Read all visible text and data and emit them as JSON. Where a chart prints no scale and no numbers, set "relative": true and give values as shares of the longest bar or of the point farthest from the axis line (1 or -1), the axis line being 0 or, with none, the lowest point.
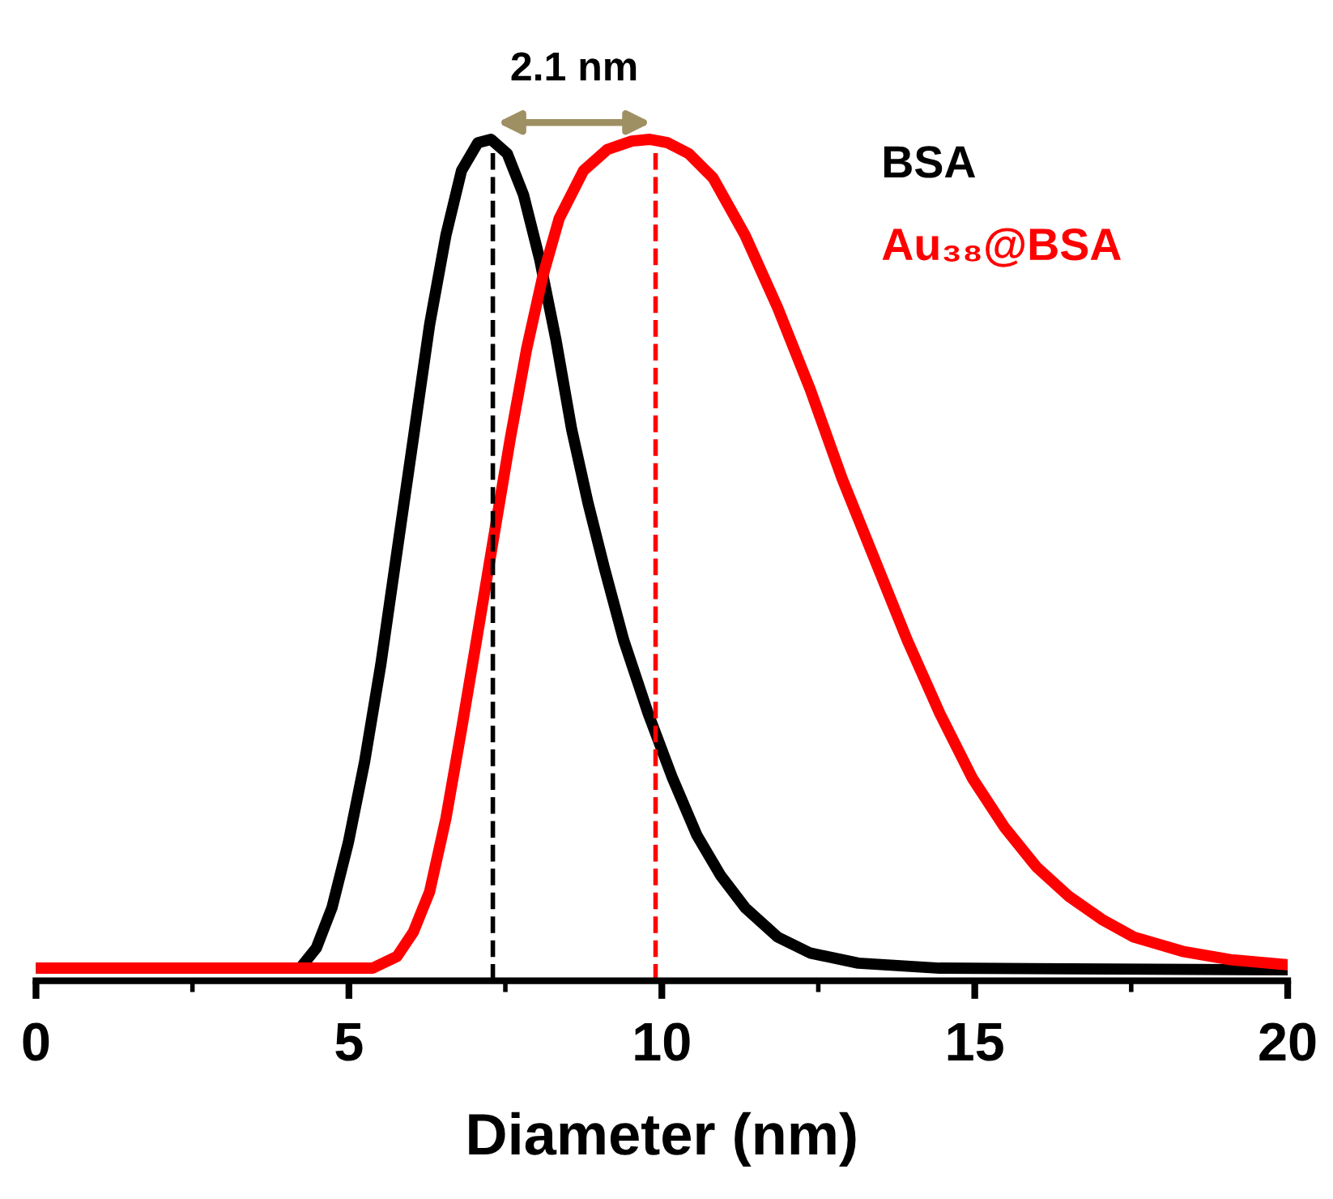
{
  "chart_data": {
    "type": "line",
    "relative": true,
    "xlabel": "Diameter (nm)",
    "xlim": [
      0,
      20
    ],
    "xticks": [
      0,
      {
        "value": 2.5,
        "label": null
      },
      5,
      {
        "value": 7.5,
        "label": null
      },
      10,
      {
        "value": 12.5,
        "label": null
      },
      15,
      {
        "value": 17.5,
        "label": null
      },
      20
    ],
    "legend": "top right",
    "grid": false,
    "marker": "none",
    "line_style": "solid",
    "series": [
      {
        "name": "BSA",
        "color": "#000000",
        "x": [
          0,
          4.22,
          4.48,
          4.73,
          4.99,
          5.25,
          5.51,
          5.77,
          6.03,
          6.29,
          6.55,
          6.8,
          7.06,
          7.27,
          7.53,
          7.79,
          8.05,
          8.31,
          8.56,
          8.82,
          9.08,
          9.39,
          9.78,
          10.17,
          10.56,
          10.94,
          11.33,
          11.85,
          12.37,
          13.14,
          14.44,
          20
        ],
        "values": [
          0.015,
          0.015,
          0.039,
          0.087,
          0.164,
          0.26,
          0.376,
          0.511,
          0.645,
          0.78,
          0.886,
          0.963,
          0.996,
          1.0,
          0.983,
          0.934,
          0.857,
          0.761,
          0.655,
          0.568,
          0.491,
          0.405,
          0.318,
          0.241,
          0.173,
          0.125,
          0.087,
          0.052,
          0.033,
          0.021,
          0.015,
          0.013
        ]
      },
      {
        "name": "Au₃₈@BSA",
        "color": "#ff0000",
        "x": [
          0,
          5.38,
          5.77,
          6.03,
          6.29,
          6.55,
          6.8,
          7.06,
          7.32,
          7.58,
          7.84,
          8.1,
          8.36,
          8.75,
          9.13,
          9.52,
          9.81,
          10.09,
          10.43,
          10.82,
          11.33,
          11.85,
          12.37,
          12.88,
          13.4,
          13.92,
          14.44,
          14.96,
          15.47,
          15.99,
          16.51,
          17.03,
          17.54,
          18.32,
          19.09,
          20
        ],
        "values": [
          0.015,
          0.015,
          0.029,
          0.058,
          0.106,
          0.193,
          0.299,
          0.414,
          0.53,
          0.645,
          0.751,
          0.838,
          0.906,
          0.963,
          0.988,
          0.998,
          1.0,
          0.996,
          0.983,
          0.954,
          0.886,
          0.8,
          0.703,
          0.597,
          0.501,
          0.405,
          0.318,
          0.241,
          0.183,
          0.135,
          0.1,
          0.073,
          0.052,
          0.035,
          0.025,
          0.019
        ]
      }
    ],
    "ref_lines": [
      {
        "axis": "x",
        "value": 7.3,
        "color": "#000000",
        "line_style": "dashed"
      },
      {
        "axis": "x",
        "value": 9.9,
        "color": "#ff0000",
        "line_style": "dashed"
      }
    ],
    "annotations": [
      "2.1 nm"
    ]
  }
}
